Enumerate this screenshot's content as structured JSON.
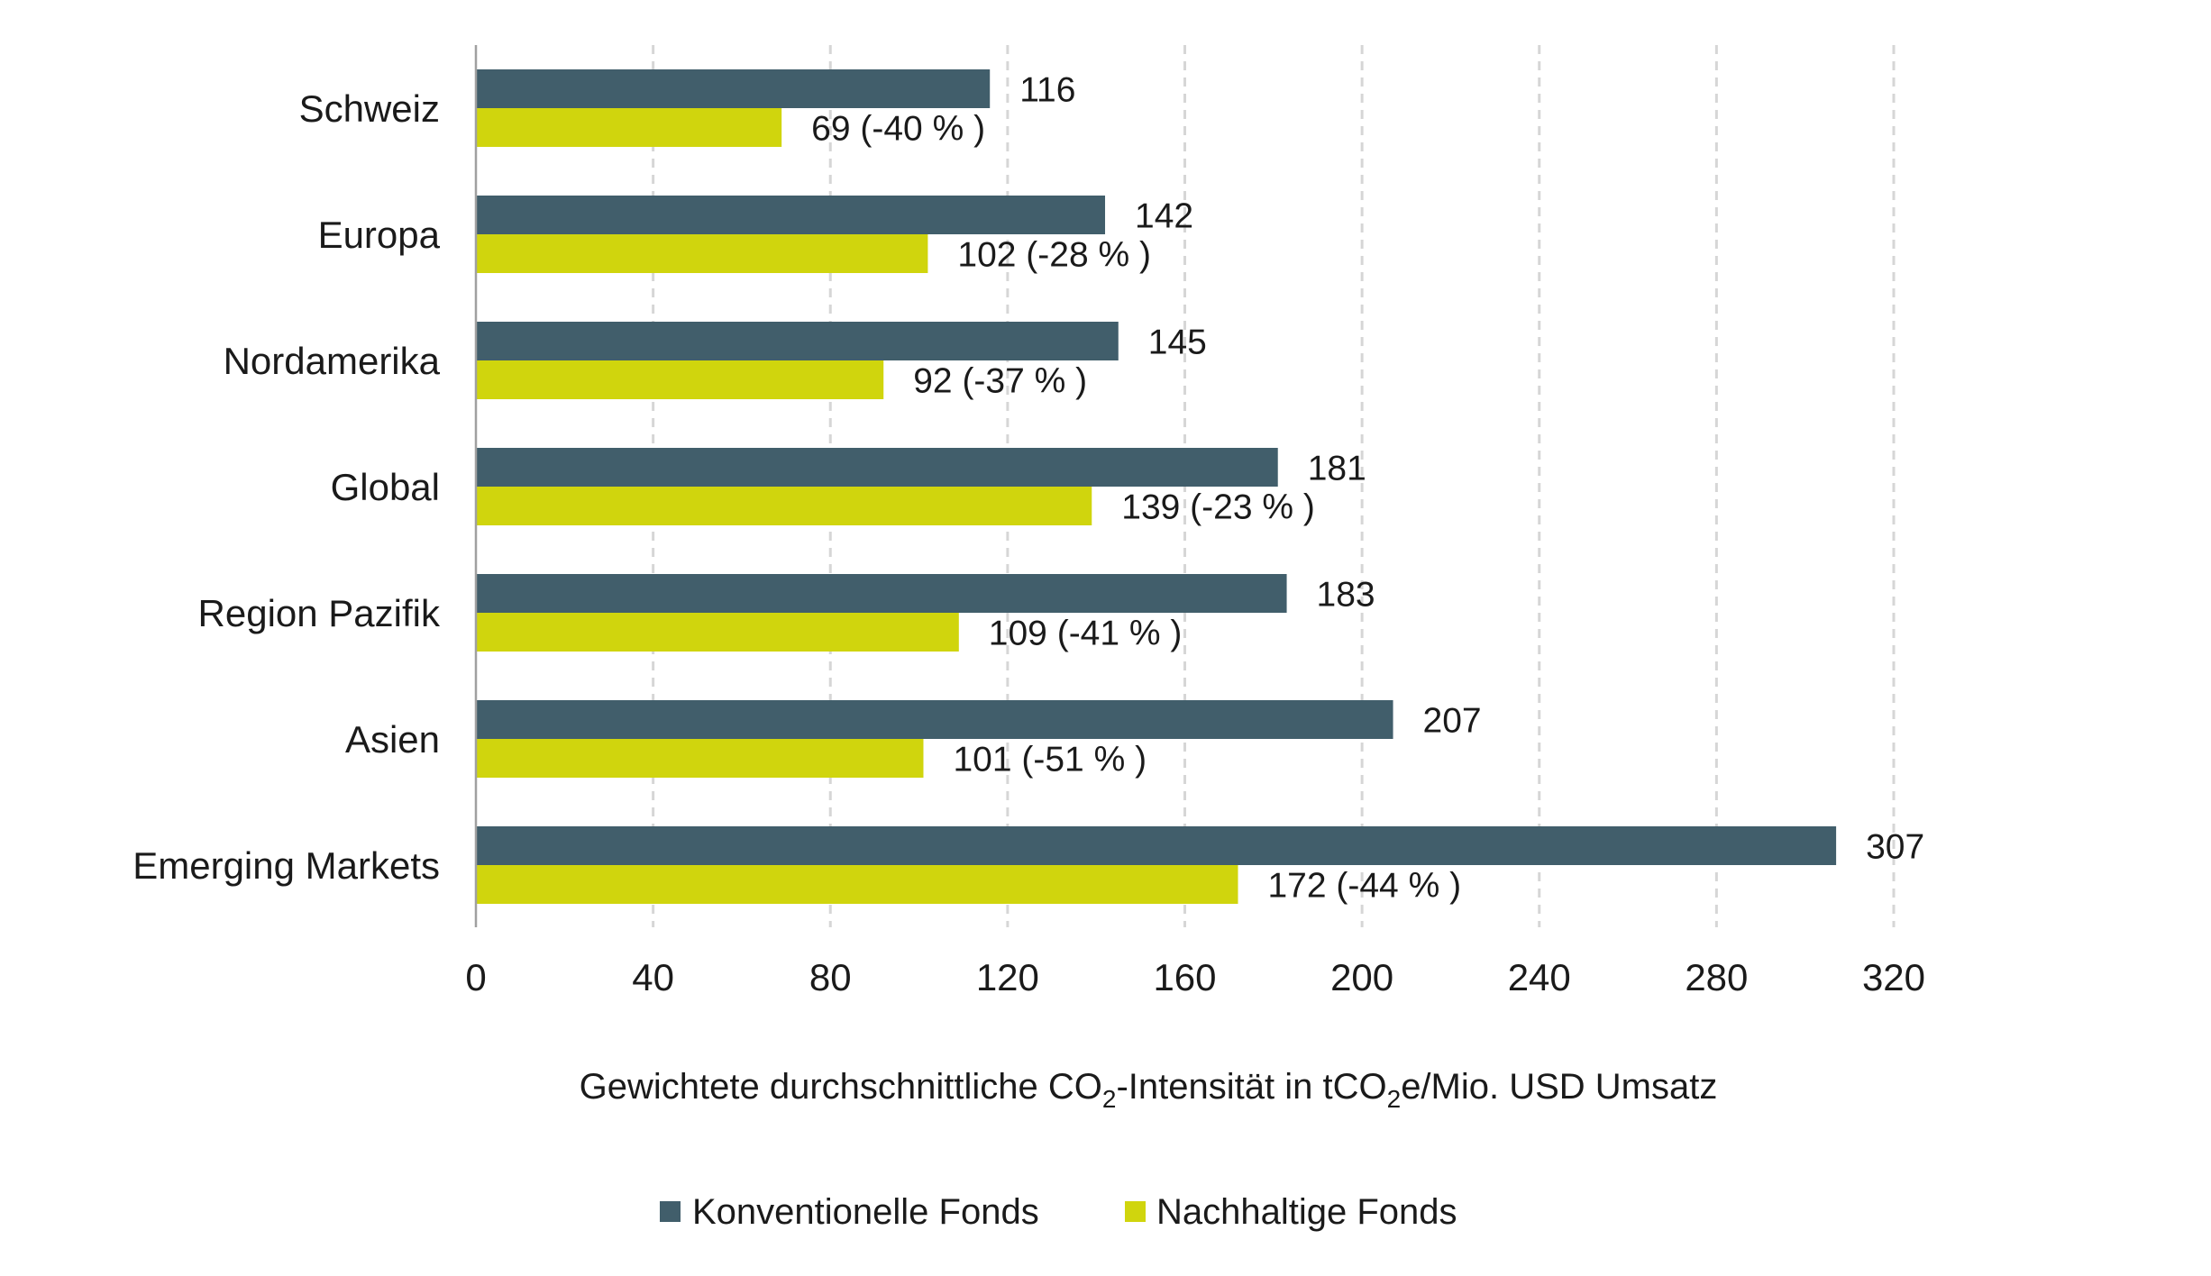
{
  "chart_data": {
    "type": "bar",
    "orientation": "horizontal",
    "title": "",
    "categories": [
      "Schweiz",
      "Europa",
      "Nordamerika",
      "Global",
      "Region Pazifik",
      "Asien",
      "Emerging Markets"
    ],
    "series": [
      {
        "name": "Konventionelle Fonds",
        "color": "#415e6b",
        "values": [
          116,
          142,
          145,
          181,
          183,
          207,
          307
        ],
        "labels": [
          "116",
          "142",
          "145",
          "181",
          "183",
          "207",
          "307"
        ]
      },
      {
        "name": "Nachhaltige Fonds",
        "color": "#d0d50d",
        "values": [
          69,
          102,
          92,
          139,
          109,
          101,
          172
        ],
        "labels": [
          "69 (-40 % )",
          "102 (-28 % )",
          "92 (-37 % )",
          "139 (-23 % )",
          "109 (-41 % )",
          "101 (-51 % )",
          "172 (-44 % )"
        ],
        "change_percent": [
          -40,
          -28,
          -37,
          -23,
          -41,
          -51,
          -44
        ]
      }
    ],
    "xlabel": {
      "before": "Gewichtete durchschnittliche CO",
      "sub1": "2",
      "middle": "-Intensität in tCO",
      "sub2": "2",
      "after": "e/Mio. USD Umsatz"
    },
    "xlabel_text": "Gewichtete durchschnittliche CO2-Intensität in tCO2e/Mio. USD Umsatz",
    "ylabel": "",
    "xlim": [
      0,
      320
    ],
    "xticks": [
      0,
      40,
      80,
      120,
      160,
      200,
      240,
      280,
      320
    ],
    "xtick_labels": [
      "0",
      "40",
      "80",
      "120",
      "160",
      "200",
      "240",
      "280",
      "320"
    ],
    "grid": "vertical-dashed",
    "legend": {
      "position": "bottom-center",
      "entries": [
        "Konventionelle Fonds",
        "Nachhaltige Fonds"
      ]
    }
  }
}
